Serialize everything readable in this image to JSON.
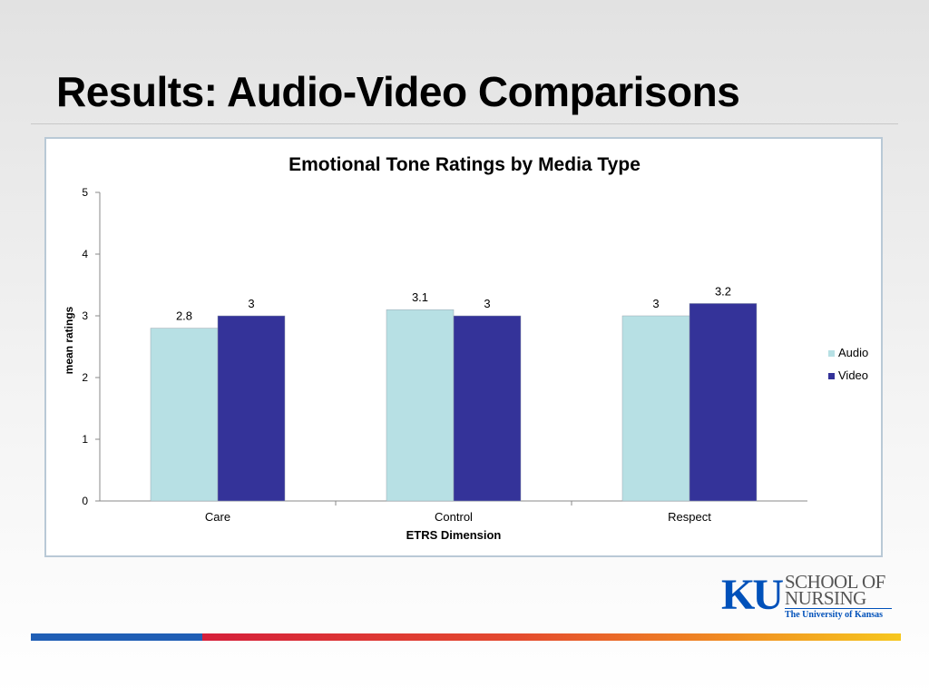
{
  "slide": {
    "title": "Results: Audio-Video Comparisons"
  },
  "logo": {
    "mark": "KU",
    "line1": "SCHOOL OF",
    "line2": "NURSING",
    "line3": "The University of Kansas",
    "color": "#0051ba"
  },
  "footer": {
    "colors": [
      "#1f5eb5",
      "#d51f3a",
      "#f08b22",
      "#f6c71e"
    ]
  },
  "chart_data": {
    "type": "bar",
    "title": "Emotional Tone Ratings by Media Type",
    "xlabel": "ETRS Dimension",
    "ylabel": "mean ratings",
    "categories": [
      "Care",
      "Control",
      "Respect"
    ],
    "series": [
      {
        "name": "Audio",
        "values": [
          2.8,
          3.1,
          3
        ],
        "labels": [
          "2.8",
          "3.1",
          "3"
        ],
        "color": "#b7e0e4"
      },
      {
        "name": "Video",
        "values": [
          3,
          3,
          3.2
        ],
        "labels": [
          "3",
          "3",
          "3.2"
        ],
        "color": "#343399"
      }
    ],
    "ylim": [
      0,
      5
    ],
    "yticks": [
      0,
      1,
      2,
      3,
      4,
      5
    ],
    "grid": false,
    "legend": "right"
  }
}
